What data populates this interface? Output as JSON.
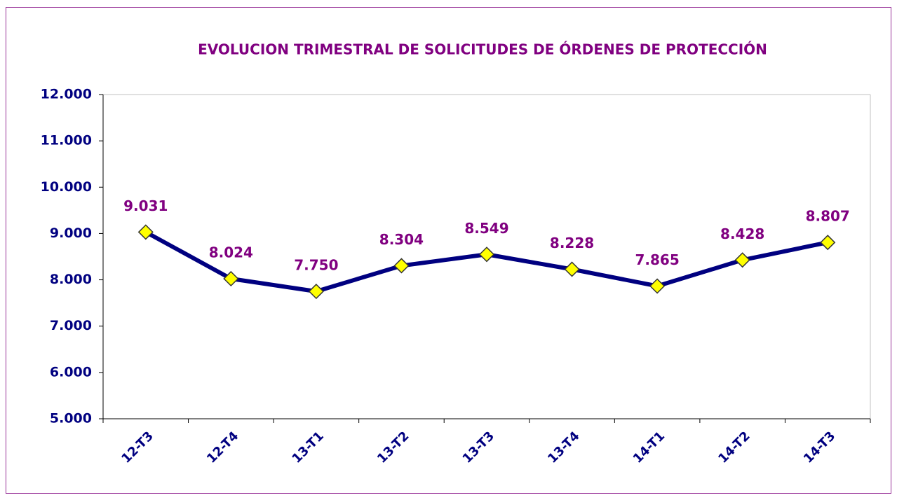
{
  "chart_data": {
    "type": "line",
    "title": "EVOLUCION TRIMESTRAL DE SOLICITUDES DE ÓRDENES DE PROTECCIÓN",
    "categories": [
      "12-T3",
      "12-T4",
      "13-T1",
      "13-T2",
      "13-T3",
      "13-T4",
      "14-T1",
      "14-T2",
      "14-T3"
    ],
    "values": [
      9031,
      8024,
      7750,
      8304,
      8549,
      8228,
      7865,
      8428,
      8807
    ],
    "value_labels": [
      "9.031",
      "8.024",
      "7.750",
      "8.304",
      "8.549",
      "8.228",
      "7.865",
      "8.428",
      "8.807"
    ],
    "color": "#000080",
    "marker_color": "#ffff00",
    "ylim": [
      5000,
      12000
    ],
    "yticks": [
      {
        "value": 5000,
        "label": "5.000"
      },
      {
        "value": 6000,
        "label": "6.000"
      },
      {
        "value": 7000,
        "label": "7.000"
      },
      {
        "value": 8000,
        "label": "8.000"
      },
      {
        "value": 9000,
        "label": "9.000"
      },
      {
        "value": 10000,
        "label": "10.000"
      },
      {
        "value": 11000,
        "label": "11.000"
      },
      {
        "value": 12000,
        "label": "12.000"
      }
    ],
    "grid": false
  }
}
